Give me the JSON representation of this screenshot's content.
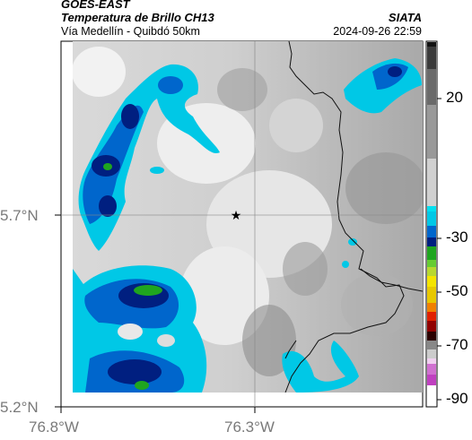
{
  "header": {
    "satellite": "GOES-EAST",
    "product": "Temperatura de Brillo CH13",
    "route": "Vía Medellín - Quibdó 50km",
    "agency": "SIATA",
    "datetime": "2024-09-26 22:59"
  },
  "map": {
    "lat_ticks": [
      "5.7°N",
      "5.2°N"
    ],
    "lon_ticks": [
      "76.8°W",
      "76.3°W"
    ],
    "marker": "star-marker"
  },
  "colorbar": {
    "ticks": [
      "20",
      "-30",
      "-50",
      "-70",
      "-90"
    ],
    "colors": {
      "warm_gray_dark": "#3a3a3a",
      "cyan": "#00c8e6",
      "blue": "#0066cc",
      "navy": "#001f80",
      "green": "#1fa51f",
      "yellow": "#f4e400",
      "red": "#e02000",
      "magenta": "#c040c0"
    }
  }
}
